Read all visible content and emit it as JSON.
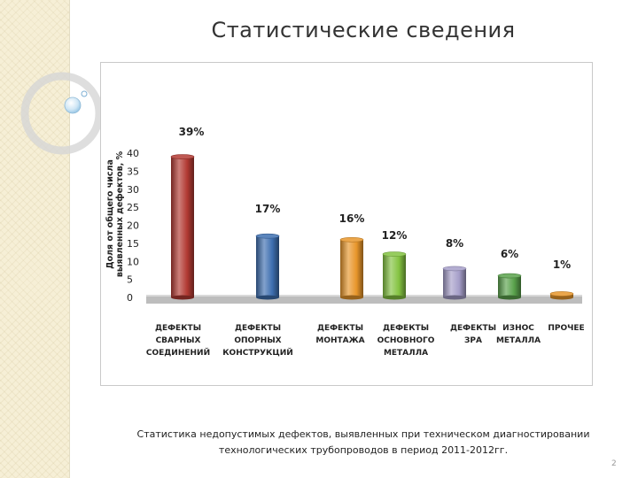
{
  "slide": {
    "title": "Статистические сведения",
    "caption_line1": "Статистика недопустимых дефектов, выявленных при техническом диагностировании",
    "caption_line2": "технологических трубопроводов в период 2011-2012гг.",
    "page_number": "2"
  },
  "chart_data": {
    "type": "bar",
    "ylabel_lines": [
      "Доля от общего числа",
      "выявленных дефектов, %"
    ],
    "ylim": [
      0,
      40
    ],
    "yticks": [
      0,
      5,
      10,
      15,
      20,
      25,
      30,
      35,
      40
    ],
    "grid": false,
    "legend": "none",
    "categories": [
      [
        "ДЕФЕКТЫ",
        "СВАРНЫХ",
        "СОЕДИНЕНИЙ"
      ],
      [
        "ДЕФЕКТЫ",
        "ОПОРНЫХ",
        "КОНСТРУКЦИЙ"
      ],
      [
        "ДЕФЕКТЫ",
        "МОНТАЖА"
      ],
      [
        "ДЕФЕКТЫ",
        "ОСНОВНОГО",
        "МЕТАЛЛА"
      ],
      [
        "ДЕФЕКТЫ",
        "ЗРА"
      ],
      [
        "ИЗНОС",
        "МЕТАЛЛА"
      ],
      [
        "ПРОЧЕЕ"
      ]
    ],
    "values": [
      39,
      17,
      16,
      12,
      8,
      6,
      1
    ],
    "data_labels": [
      "39%",
      "17%",
      "16%",
      "12%",
      "8%",
      "6%",
      "1%"
    ],
    "colors": [
      "#b23a33",
      "#3e6fb0",
      "#e8962b",
      "#84c341",
      "#a59ec9",
      "#5aa24c",
      "#e8962b"
    ]
  }
}
